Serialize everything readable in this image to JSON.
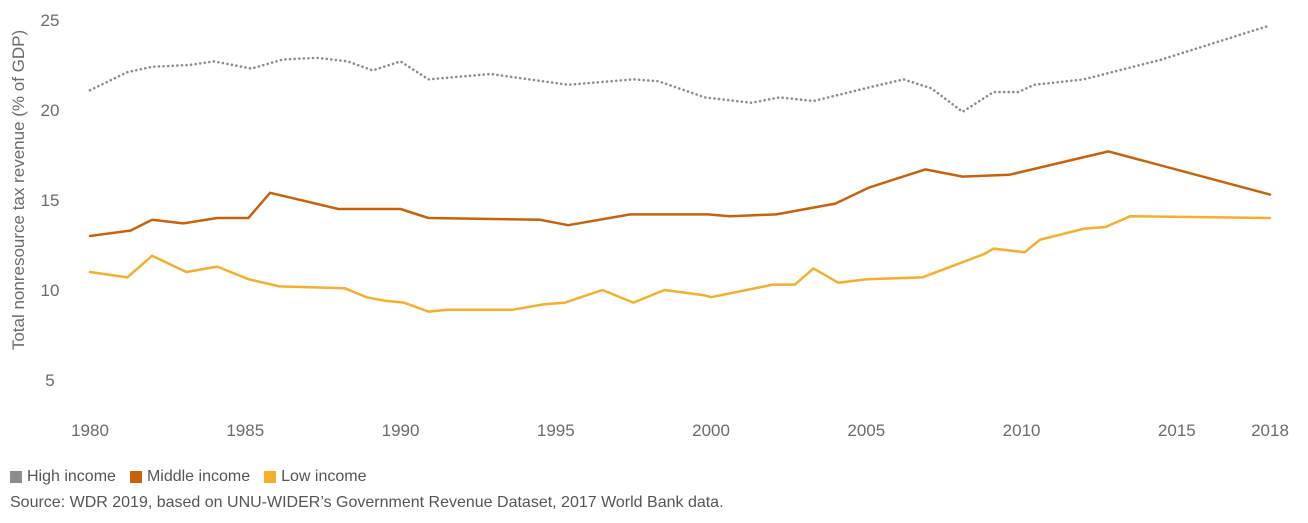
{
  "chart_data": {
    "type": "line",
    "title": "",
    "xlabel": "",
    "ylabel": "Total nonresource tax revenue (% of GDP)",
    "xlim": [
      1980,
      2018
    ],
    "ylim": [
      5,
      25
    ],
    "x_ticks": [
      "1980",
      "1985",
      "1990",
      "1995",
      "2000",
      "2005",
      "2010",
      "2015",
      "2018"
    ],
    "x_tick_values": [
      1980,
      1985,
      1990,
      1995,
      2000,
      2005,
      2010,
      2015,
      2018
    ],
    "y_ticks": [
      "5",
      "10",
      "15",
      "20",
      "25"
    ],
    "y_tick_values": [
      5,
      10,
      15,
      20,
      25
    ],
    "grid": false,
    "legend_position": "bottom-left",
    "series": [
      {
        "name": "High income",
        "color": "#8c8c8c",
        "style": "dotted",
        "points": [
          [
            1980,
            21.1
          ],
          [
            1981.2,
            22.1
          ],
          [
            1982,
            22.4
          ],
          [
            1983.2,
            22.5
          ],
          [
            1984,
            22.7
          ],
          [
            1985.2,
            22.3
          ],
          [
            1986.2,
            22.8
          ],
          [
            1987.3,
            22.9
          ],
          [
            1988.3,
            22.7
          ],
          [
            1989.1,
            22.2
          ],
          [
            1990,
            22.7
          ],
          [
            1990.9,
            21.7
          ],
          [
            1992.9,
            22.0
          ],
          [
            1995.4,
            21.4
          ],
          [
            1997.5,
            21.7
          ],
          [
            1998.3,
            21.6
          ],
          [
            1999.8,
            20.7
          ],
          [
            2001.3,
            20.4
          ],
          [
            2002.2,
            20.7
          ],
          [
            2003.3,
            20.5
          ],
          [
            2005.2,
            21.3
          ],
          [
            2006.2,
            21.7
          ],
          [
            2007.1,
            21.2
          ],
          [
            2008.1,
            19.9
          ],
          [
            2009.1,
            21.0
          ],
          [
            2009.9,
            21.0
          ],
          [
            2010.4,
            21.4
          ],
          [
            2012,
            21.7
          ],
          [
            2014.5,
            22.8
          ],
          [
            2018,
            24.7
          ]
        ]
      },
      {
        "name": "Middle income",
        "color": "#c8620b",
        "style": "solid",
        "points": [
          [
            1980,
            13.0
          ],
          [
            1981.3,
            13.3
          ],
          [
            1982,
            13.9
          ],
          [
            1983,
            13.7
          ],
          [
            1984.1,
            14.0
          ],
          [
            1985.1,
            14.0
          ],
          [
            1985.8,
            15.4
          ],
          [
            1988,
            14.5
          ],
          [
            1990,
            14.5
          ],
          [
            1990.9,
            14.0
          ],
          [
            1994.5,
            13.9
          ],
          [
            1995.4,
            13.6
          ],
          [
            1997.4,
            14.2
          ],
          [
            1999.9,
            14.2
          ],
          [
            2000.6,
            14.1
          ],
          [
            2002.1,
            14.2
          ],
          [
            2004,
            14.8
          ],
          [
            2005.1,
            15.7
          ],
          [
            2006.9,
            16.7
          ],
          [
            2008.1,
            16.3
          ],
          [
            2009.6,
            16.4
          ],
          [
            2012.8,
            17.7
          ],
          [
            2018,
            15.3
          ]
        ]
      },
      {
        "name": "Low income",
        "color": "#f5af2a",
        "style": "solid",
        "points": [
          [
            1980,
            11.0
          ],
          [
            1981.2,
            10.7
          ],
          [
            1982,
            11.9
          ],
          [
            1983.1,
            11.0
          ],
          [
            1984.1,
            11.3
          ],
          [
            1985.1,
            10.6
          ],
          [
            1986.1,
            10.2
          ],
          [
            1988.2,
            10.1
          ],
          [
            1988.9,
            9.6
          ],
          [
            1989.5,
            9.4
          ],
          [
            1990.1,
            9.3
          ],
          [
            1990.9,
            8.8
          ],
          [
            1991.5,
            8.9
          ],
          [
            1993.6,
            8.9
          ],
          [
            1994.6,
            9.2
          ],
          [
            1995.3,
            9.3
          ],
          [
            1996.5,
            10.0
          ],
          [
            1997.5,
            9.3
          ],
          [
            1998.5,
            10.0
          ],
          [
            1999.8,
            9.7
          ],
          [
            2000,
            9.6
          ],
          [
            2002,
            10.3
          ],
          [
            2002.7,
            10.3
          ],
          [
            2003.3,
            11.2
          ],
          [
            2004.1,
            10.4
          ],
          [
            2005,
            10.6
          ],
          [
            2006.8,
            10.7
          ],
          [
            2008.8,
            12.0
          ],
          [
            2009.1,
            12.3
          ],
          [
            2010.1,
            12.1
          ],
          [
            2010.6,
            12.8
          ],
          [
            2012,
            13.4
          ],
          [
            2012.7,
            13.5
          ],
          [
            2013.5,
            14.1
          ],
          [
            2018,
            14.0
          ]
        ]
      }
    ]
  },
  "legend": {
    "items": [
      {
        "label": "High income",
        "color": "#8c8c8c"
      },
      {
        "label": "Middle income",
        "color": "#c8620b"
      },
      {
        "label": "Low income",
        "color": "#f5af2a"
      }
    ]
  },
  "source": "Source: WDR 2019, based on UNU-WIDER’s Government Revenue Dataset, 2017 World Bank data."
}
